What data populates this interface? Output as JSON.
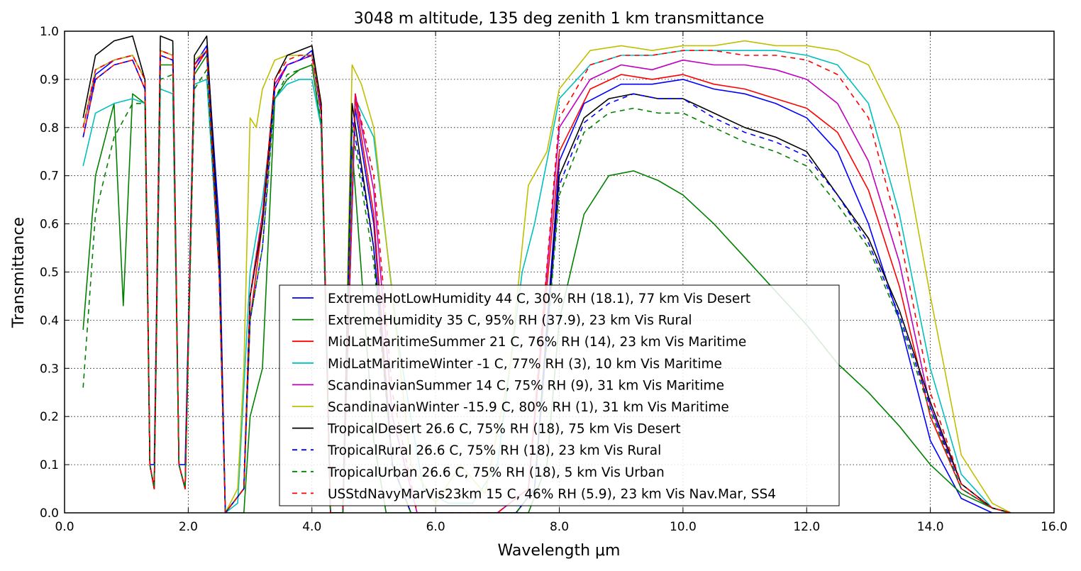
{
  "chart_data": {
    "type": "line",
    "title": "3048 m altitude, 135 deg zenith 1 km transmittance",
    "xlabel": "Wavelength μm",
    "ylabel": "Transmittance",
    "xlim": [
      0,
      16
    ],
    "ylim": [
      0,
      1
    ],
    "xticks": [
      "0.0",
      "2.0",
      "4.0",
      "6.0",
      "8.0",
      "10.0",
      "12.0",
      "14.0",
      "16.0"
    ],
    "yticks": [
      "0.0",
      "0.1",
      "0.2",
      "0.3",
      "0.4",
      "0.5",
      "0.6",
      "0.7",
      "0.8",
      "0.9",
      "1.0"
    ],
    "grid": true,
    "legend_position": "lower-center",
    "series": [
      {
        "name": "ExtremeHotLowHumidity 44 C, 30% RH (18.1), 77 km Vis Desert",
        "color": "#0000ff",
        "style": "solid",
        "x": [
          0.3,
          0.5,
          0.8,
          1.1,
          1.3,
          1.38,
          1.45,
          1.55,
          1.75,
          1.85,
          1.95,
          2.1,
          2.3,
          2.5,
          2.6,
          2.9,
          3.0,
          3.2,
          3.4,
          3.6,
          3.8,
          4.0,
          4.15,
          4.3,
          4.5,
          4.7,
          5.0,
          5.3,
          5.6,
          6.0,
          6.5,
          7.0,
          7.3,
          7.6,
          8.0,
          8.4,
          9.0,
          9.5,
          10.0,
          10.5,
          11.0,
          11.5,
          12.0,
          12.5,
          13.0,
          13.5,
          14.0,
          14.5,
          15.0,
          15.3
        ],
        "y": [
          0.8,
          0.91,
          0.94,
          0.95,
          0.9,
          0.1,
          0.1,
          0.96,
          0.95,
          0.1,
          0.1,
          0.93,
          0.97,
          0.6,
          0.0,
          0.05,
          0.45,
          0.6,
          0.88,
          0.93,
          0.94,
          0.96,
          0.85,
          0.0,
          0.0,
          0.84,
          0.6,
          0.1,
          0.0,
          0.0,
          0.0,
          0.0,
          0.0,
          0.05,
          0.73,
          0.85,
          0.89,
          0.89,
          0.9,
          0.88,
          0.87,
          0.85,
          0.82,
          0.75,
          0.6,
          0.4,
          0.15,
          0.03,
          0.0,
          0.0
        ]
      },
      {
        "name": "ExtremeHumidity 35 C, 95% RH (37.9), 23 km Vis Rural",
        "color": "#008000",
        "style": "solid",
        "x": [
          0.3,
          0.5,
          0.8,
          0.95,
          1.1,
          1.3,
          1.38,
          1.45,
          1.55,
          1.75,
          1.85,
          1.95,
          2.1,
          2.3,
          2.5,
          2.6,
          2.9,
          3.0,
          3.2,
          3.4,
          3.6,
          3.8,
          4.0,
          4.15,
          4.3,
          4.5,
          4.65,
          4.8,
          5.0,
          5.2,
          5.5,
          6.0,
          7.0,
          7.5,
          7.8,
          8.0,
          8.4,
          8.8,
          9.2,
          9.6,
          10.0,
          10.5,
          11.0,
          11.5,
          12.0,
          12.5,
          13.0,
          13.5,
          14.0,
          14.5,
          15.0,
          15.3
        ],
        "y": [
          0.38,
          0.7,
          0.85,
          0.43,
          0.87,
          0.85,
          0.1,
          0.05,
          0.93,
          0.93,
          0.1,
          0.05,
          0.91,
          0.95,
          0.5,
          0.0,
          0.0,
          0.2,
          0.3,
          0.86,
          0.9,
          0.92,
          0.93,
          0.8,
          0.0,
          0.0,
          0.76,
          0.5,
          0.15,
          0.0,
          0.0,
          0.0,
          0.0,
          0.0,
          0.1,
          0.4,
          0.62,
          0.7,
          0.71,
          0.69,
          0.66,
          0.6,
          0.53,
          0.46,
          0.39,
          0.31,
          0.25,
          0.18,
          0.1,
          0.04,
          0.01,
          0.0
        ]
      },
      {
        "name": "MidLatMaritimeSummer 21 C, 76% RH (14), 23 km Vis Maritime",
        "color": "#ff0000",
        "style": "solid",
        "x": [
          0.3,
          0.5,
          0.8,
          1.1,
          1.3,
          1.38,
          1.45,
          1.55,
          1.75,
          1.85,
          1.95,
          2.1,
          2.3,
          2.5,
          2.6,
          2.9,
          3.0,
          3.2,
          3.4,
          3.6,
          3.8,
          4.0,
          4.15,
          4.3,
          4.5,
          4.7,
          5.0,
          5.3,
          5.6,
          6.0,
          7.0,
          7.5,
          8.0,
          8.5,
          9.0,
          9.5,
          10.0,
          10.5,
          11.0,
          11.5,
          12.0,
          12.5,
          13.0,
          13.5,
          14.0,
          14.5,
          15.0,
          15.3
        ],
        "y": [
          0.78,
          0.9,
          0.93,
          0.94,
          0.88,
          0.1,
          0.05,
          0.95,
          0.94,
          0.1,
          0.05,
          0.92,
          0.96,
          0.5,
          0.0,
          0.05,
          0.4,
          0.6,
          0.88,
          0.93,
          0.94,
          0.95,
          0.83,
          0.0,
          0.0,
          0.86,
          0.62,
          0.1,
          0.0,
          0.0,
          0.0,
          0.05,
          0.75,
          0.88,
          0.91,
          0.9,
          0.91,
          0.89,
          0.88,
          0.86,
          0.84,
          0.79,
          0.67,
          0.47,
          0.2,
          0.05,
          0.01,
          0.0
        ]
      },
      {
        "name": "MidLatMaritimeWinter -1 C, 77% RH (3), 10 km Vis Maritime",
        "color": "#00bfbf",
        "style": "solid",
        "x": [
          0.3,
          0.5,
          0.8,
          1.1,
          1.3,
          1.38,
          1.45,
          1.55,
          1.75,
          1.85,
          1.95,
          2.1,
          2.3,
          2.5,
          2.6,
          2.8,
          3.0,
          3.2,
          3.4,
          3.6,
          3.8,
          4.0,
          4.15,
          4.3,
          4.5,
          4.7,
          5.0,
          5.4,
          5.8,
          6.2,
          6.6,
          7.0,
          7.4,
          7.6,
          8.0,
          8.5,
          9.0,
          9.5,
          10.0,
          10.5,
          11.0,
          11.5,
          12.0,
          12.5,
          13.0,
          13.5,
          14.0,
          14.5,
          15.0,
          15.3
        ],
        "y": [
          0.72,
          0.83,
          0.85,
          0.86,
          0.85,
          0.1,
          0.05,
          0.88,
          0.87,
          0.1,
          0.05,
          0.89,
          0.9,
          0.5,
          0.0,
          0.02,
          0.5,
          0.65,
          0.86,
          0.89,
          0.9,
          0.9,
          0.8,
          0.0,
          0.0,
          0.86,
          0.78,
          0.35,
          0.05,
          0.02,
          0.02,
          0.1,
          0.5,
          0.6,
          0.86,
          0.93,
          0.95,
          0.95,
          0.96,
          0.96,
          0.96,
          0.96,
          0.95,
          0.93,
          0.85,
          0.62,
          0.3,
          0.08,
          0.01,
          0.0
        ]
      },
      {
        "name": "ScandinavianSummer 14 C, 75% RH (9), 31 km Vis Maritime",
        "color": "#bf00bf",
        "style": "solid",
        "x": [
          0.3,
          0.5,
          0.8,
          1.1,
          1.3,
          1.38,
          1.45,
          1.55,
          1.75,
          1.85,
          1.95,
          2.1,
          2.3,
          2.5,
          2.6,
          2.9,
          3.0,
          3.2,
          3.4,
          3.6,
          3.8,
          4.0,
          4.15,
          4.3,
          4.5,
          4.7,
          5.0,
          5.3,
          5.7,
          6.0,
          7.0,
          7.5,
          8.0,
          8.5,
          9.0,
          9.5,
          10.0,
          10.5,
          11.0,
          11.5,
          12.0,
          12.5,
          13.0,
          13.5,
          14.0,
          14.5,
          15.0,
          15.3
        ],
        "y": [
          0.8,
          0.92,
          0.94,
          0.95,
          0.9,
          0.1,
          0.05,
          0.96,
          0.95,
          0.1,
          0.05,
          0.93,
          0.96,
          0.5,
          0.0,
          0.05,
          0.45,
          0.62,
          0.89,
          0.93,
          0.94,
          0.95,
          0.84,
          0.0,
          0.0,
          0.87,
          0.67,
          0.2,
          0.0,
          0.0,
          0.0,
          0.05,
          0.8,
          0.9,
          0.93,
          0.92,
          0.94,
          0.93,
          0.93,
          0.92,
          0.9,
          0.85,
          0.73,
          0.52,
          0.22,
          0.06,
          0.01,
          0.0
        ]
      },
      {
        "name": "ScandinavianWinter -15.9 C, 80% RH (1), 31 km Vis Maritime",
        "color": "#bfbf00",
        "style": "solid",
        "x": [
          0.3,
          0.5,
          0.8,
          1.1,
          1.3,
          1.38,
          1.45,
          1.55,
          1.75,
          1.85,
          1.95,
          2.1,
          2.3,
          2.5,
          2.6,
          2.8,
          2.9,
          3.0,
          3.1,
          3.2,
          3.4,
          3.6,
          3.8,
          4.0,
          4.15,
          4.3,
          4.5,
          4.65,
          4.8,
          5.0,
          5.3,
          5.6,
          6.0,
          6.4,
          6.8,
          7.2,
          7.5,
          7.8,
          8.0,
          8.5,
          9.0,
          9.5,
          10.0,
          10.5,
          11.0,
          11.5,
          12.0,
          12.5,
          13.0,
          13.5,
          14.0,
          14.5,
          15.0,
          15.3
        ],
        "y": [
          0.8,
          0.92,
          0.94,
          0.95,
          0.9,
          0.1,
          0.05,
          0.96,
          0.95,
          0.1,
          0.05,
          0.94,
          0.96,
          0.5,
          0.0,
          0.05,
          0.3,
          0.82,
          0.8,
          0.88,
          0.94,
          0.95,
          0.95,
          0.95,
          0.85,
          0.0,
          0.0,
          0.93,
          0.89,
          0.8,
          0.45,
          0.1,
          0.02,
          0.1,
          0.04,
          0.3,
          0.68,
          0.75,
          0.88,
          0.96,
          0.97,
          0.96,
          0.97,
          0.97,
          0.98,
          0.97,
          0.97,
          0.96,
          0.93,
          0.8,
          0.45,
          0.12,
          0.02,
          0.0
        ]
      },
      {
        "name": "TropicalDesert 26.6 C, 75% RH (18), 75 km Vis Desert",
        "color": "#000000",
        "style": "solid",
        "x": [
          0.3,
          0.5,
          0.8,
          1.1,
          1.3,
          1.38,
          1.45,
          1.55,
          1.75,
          1.85,
          1.95,
          2.1,
          2.3,
          2.5,
          2.6,
          2.9,
          3.0,
          3.2,
          3.4,
          3.6,
          3.8,
          4.0,
          4.15,
          4.3,
          4.5,
          4.65,
          5.0,
          5.3,
          5.6,
          6.0,
          7.0,
          7.3,
          7.6,
          8.0,
          8.4,
          8.8,
          9.2,
          9.6,
          10.0,
          10.5,
          11.0,
          11.5,
          12.0,
          12.5,
          13.0,
          13.5,
          14.0,
          14.5,
          15.0,
          15.3
        ],
        "y": [
          0.82,
          0.95,
          0.98,
          0.99,
          0.9,
          0.1,
          0.05,
          0.99,
          0.98,
          0.1,
          0.05,
          0.95,
          0.99,
          0.55,
          0.0,
          0.05,
          0.45,
          0.6,
          0.9,
          0.95,
          0.96,
          0.97,
          0.85,
          0.0,
          0.0,
          0.85,
          0.55,
          0.1,
          0.0,
          0.0,
          0.0,
          0.0,
          0.05,
          0.7,
          0.82,
          0.86,
          0.87,
          0.86,
          0.86,
          0.83,
          0.8,
          0.78,
          0.75,
          0.66,
          0.57,
          0.42,
          0.23,
          0.06,
          0.01,
          0.0
        ]
      },
      {
        "name": "TropicalRural 26.6 C, 75% RH (18), 23 km Vis Rural",
        "color": "#0000ff",
        "style": "dashed",
        "x": [
          0.3,
          0.5,
          0.8,
          1.1,
          1.3,
          1.38,
          1.45,
          1.55,
          1.75,
          1.85,
          1.95,
          2.1,
          2.3,
          2.5,
          2.6,
          2.9,
          3.0,
          3.2,
          3.4,
          3.6,
          3.8,
          4.0,
          4.15,
          4.3,
          4.5,
          4.65,
          5.0,
          5.3,
          5.6,
          6.0,
          7.0,
          7.3,
          7.6,
          8.0,
          8.4,
          8.8,
          9.2,
          9.6,
          10.0,
          10.5,
          11.0,
          11.5,
          12.0,
          12.5,
          13.0,
          13.5,
          14.0,
          14.5,
          15.0,
          15.3
        ],
        "y": [
          0.78,
          0.9,
          0.93,
          0.94,
          0.88,
          0.1,
          0.05,
          0.95,
          0.94,
          0.1,
          0.05,
          0.92,
          0.96,
          0.5,
          0.0,
          0.05,
          0.4,
          0.55,
          0.88,
          0.93,
          0.94,
          0.95,
          0.83,
          0.0,
          0.0,
          0.82,
          0.55,
          0.1,
          0.0,
          0.0,
          0.0,
          0.0,
          0.05,
          0.68,
          0.81,
          0.85,
          0.87,
          0.86,
          0.86,
          0.82,
          0.79,
          0.77,
          0.74,
          0.66,
          0.56,
          0.41,
          0.22,
          0.05,
          0.01,
          0.0
        ]
      },
      {
        "name": "TropicalUrban 26.6 C, 75% RH (18), 5 km Vis Urban",
        "color": "#008000",
        "style": "dashed",
        "x": [
          0.3,
          0.5,
          0.8,
          1.1,
          1.3,
          1.38,
          1.45,
          1.55,
          1.75,
          1.85,
          1.95,
          2.1,
          2.3,
          2.5,
          2.6,
          2.9,
          3.0,
          3.2,
          3.4,
          3.6,
          3.8,
          4.0,
          4.15,
          4.3,
          4.5,
          4.65,
          5.0,
          5.3,
          5.6,
          6.0,
          7.0,
          7.3,
          7.6,
          8.0,
          8.4,
          8.8,
          9.2,
          9.6,
          10.0,
          10.5,
          11.0,
          11.5,
          12.0,
          12.5,
          13.0,
          13.5,
          14.0,
          14.5,
          15.0,
          15.3
        ],
        "y": [
          0.26,
          0.62,
          0.78,
          0.85,
          0.85,
          0.1,
          0.05,
          0.9,
          0.91,
          0.1,
          0.05,
          0.88,
          0.92,
          0.5,
          0.0,
          0.05,
          0.4,
          0.55,
          0.86,
          0.91,
          0.92,
          0.93,
          0.81,
          0.0,
          0.0,
          0.8,
          0.52,
          0.1,
          0.0,
          0.0,
          0.0,
          0.0,
          0.05,
          0.66,
          0.79,
          0.83,
          0.84,
          0.83,
          0.83,
          0.8,
          0.77,
          0.75,
          0.72,
          0.64,
          0.55,
          0.4,
          0.21,
          0.05,
          0.01,
          0.0
        ]
      },
      {
        "name": "USStdNavyMarVis23km 15 C, 46% RH (5.9), 23 km Vis Nav.Mar, SS4",
        "color": "#ff0000",
        "style": "dashed",
        "x": [
          0.3,
          0.5,
          0.8,
          1.1,
          1.3,
          1.38,
          1.45,
          1.55,
          1.75,
          1.85,
          1.95,
          2.1,
          2.3,
          2.5,
          2.6,
          2.9,
          3.0,
          3.2,
          3.4,
          3.6,
          3.8,
          4.0,
          4.15,
          4.3,
          4.5,
          4.7,
          5.0,
          5.3,
          5.7,
          6.0,
          7.0,
          7.5,
          8.0,
          8.5,
          9.0,
          9.5,
          10.0,
          10.5,
          11.0,
          11.5,
          12.0,
          12.5,
          13.0,
          13.5,
          14.0,
          14.5,
          15.0,
          15.3
        ],
        "y": [
          0.8,
          0.92,
          0.94,
          0.95,
          0.9,
          0.1,
          0.05,
          0.96,
          0.95,
          0.1,
          0.05,
          0.93,
          0.96,
          0.5,
          0.0,
          0.05,
          0.45,
          0.62,
          0.9,
          0.94,
          0.95,
          0.95,
          0.84,
          0.0,
          0.0,
          0.87,
          0.7,
          0.25,
          0.0,
          0.0,
          0.0,
          0.05,
          0.82,
          0.93,
          0.95,
          0.95,
          0.96,
          0.96,
          0.95,
          0.95,
          0.94,
          0.91,
          0.82,
          0.58,
          0.25,
          0.06,
          0.01,
          0.0
        ]
      }
    ]
  }
}
